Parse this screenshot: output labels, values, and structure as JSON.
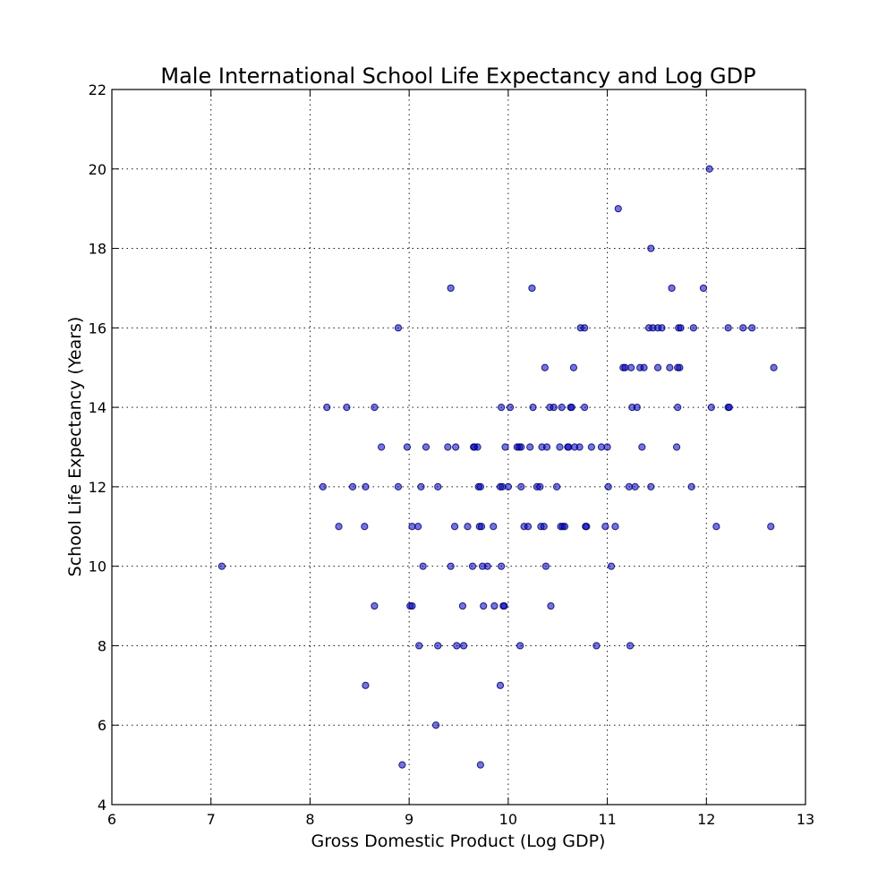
{
  "chart_data": {
    "type": "scatter",
    "title": "Male International School Life Expectancy and Log GDP",
    "xlabel": "Gross Domestic Product (Log GDP)",
    "ylabel": "School Life Expectancy (Years)",
    "xlim": [
      6,
      13
    ],
    "ylim": [
      4,
      22
    ],
    "xticks": [
      6,
      7,
      8,
      9,
      10,
      11,
      12,
      13
    ],
    "yticks": [
      4,
      6,
      8,
      10,
      12,
      14,
      16,
      18,
      20,
      22
    ],
    "grid": true,
    "marker_color": "#0000cc",
    "points": [
      [
        7.11,
        10
      ],
      [
        8.13,
        12
      ],
      [
        8.17,
        14
      ],
      [
        8.29,
        11
      ],
      [
        8.37,
        14
      ],
      [
        8.43,
        12
      ],
      [
        8.55,
        11
      ],
      [
        8.56,
        12
      ],
      [
        8.56,
        7
      ],
      [
        8.65,
        14
      ],
      [
        8.65,
        9
      ],
      [
        8.72,
        13
      ],
      [
        8.89,
        12
      ],
      [
        8.89,
        16
      ],
      [
        8.93,
        5
      ],
      [
        8.98,
        13
      ],
      [
        9.01,
        9
      ],
      [
        9.03,
        9
      ],
      [
        9.03,
        11
      ],
      [
        9.09,
        11
      ],
      [
        9.1,
        8
      ],
      [
        9.12,
        12
      ],
      [
        9.14,
        10
      ],
      [
        9.17,
        13
      ],
      [
        9.27,
        6
      ],
      [
        9.29,
        12
      ],
      [
        9.29,
        8
      ],
      [
        9.39,
        13
      ],
      [
        9.42,
        17
      ],
      [
        9.42,
        10
      ],
      [
        9.46,
        11
      ],
      [
        9.47,
        13
      ],
      [
        9.48,
        8
      ],
      [
        9.54,
        9
      ],
      [
        9.55,
        8
      ],
      [
        9.59,
        11
      ],
      [
        9.64,
        10
      ],
      [
        9.65,
        13
      ],
      [
        9.66,
        13
      ],
      [
        9.69,
        13
      ],
      [
        9.7,
        12
      ],
      [
        9.71,
        11
      ],
      [
        9.72,
        12
      ],
      [
        9.72,
        5
      ],
      [
        9.73,
        11
      ],
      [
        9.74,
        10
      ],
      [
        9.75,
        9
      ],
      [
        9.79,
        10
      ],
      [
        9.85,
        11
      ],
      [
        9.86,
        9
      ],
      [
        9.92,
        7
      ],
      [
        9.92,
        12
      ],
      [
        9.93,
        14
      ],
      [
        9.93,
        10
      ],
      [
        9.94,
        12
      ],
      [
        9.95,
        9
      ],
      [
        9.96,
        9
      ],
      [
        9.97,
        13
      ],
      [
        10.0,
        12
      ],
      [
        10.02,
        14
      ],
      [
        10.09,
        13
      ],
      [
        10.11,
        13
      ],
      [
        10.12,
        8
      ],
      [
        10.13,
        12
      ],
      [
        10.13,
        13
      ],
      [
        10.16,
        11
      ],
      [
        10.2,
        11
      ],
      [
        10.22,
        13
      ],
      [
        10.24,
        17
      ],
      [
        10.25,
        14
      ],
      [
        10.29,
        12
      ],
      [
        10.32,
        12
      ],
      [
        10.33,
        11
      ],
      [
        10.34,
        13
      ],
      [
        10.36,
        11
      ],
      [
        10.37,
        15
      ],
      [
        10.38,
        10
      ],
      [
        10.39,
        13
      ],
      [
        10.42,
        14
      ],
      [
        10.43,
        9
      ],
      [
        10.46,
        14
      ],
      [
        10.49,
        12
      ],
      [
        10.52,
        13
      ],
      [
        10.53,
        11
      ],
      [
        10.54,
        14
      ],
      [
        10.55,
        11
      ],
      [
        10.57,
        11
      ],
      [
        10.6,
        13
      ],
      [
        10.61,
        13
      ],
      [
        10.63,
        14
      ],
      [
        10.64,
        14
      ],
      [
        10.66,
        15
      ],
      [
        10.67,
        13
      ],
      [
        10.72,
        13
      ],
      [
        10.73,
        16
      ],
      [
        10.77,
        14
      ],
      [
        10.77,
        16
      ],
      [
        10.78,
        11
      ],
      [
        10.79,
        11
      ],
      [
        10.84,
        13
      ],
      [
        10.89,
        8
      ],
      [
        10.94,
        13
      ],
      [
        10.98,
        11
      ],
      [
        11.0,
        13
      ],
      [
        11.01,
        12
      ],
      [
        11.04,
        10
      ],
      [
        11.08,
        11
      ],
      [
        11.11,
        19
      ],
      [
        11.16,
        15
      ],
      [
        11.18,
        15
      ],
      [
        11.22,
        12
      ],
      [
        11.23,
        8
      ],
      [
        11.24,
        15
      ],
      [
        11.25,
        14
      ],
      [
        11.28,
        12
      ],
      [
        11.3,
        14
      ],
      [
        11.33,
        15
      ],
      [
        11.35,
        13
      ],
      [
        11.37,
        15
      ],
      [
        11.42,
        16
      ],
      [
        11.44,
        18
      ],
      [
        11.44,
        12
      ],
      [
        11.46,
        16
      ],
      [
        11.51,
        15
      ],
      [
        11.51,
        16
      ],
      [
        11.55,
        16
      ],
      [
        11.63,
        15
      ],
      [
        11.65,
        17
      ],
      [
        11.7,
        13
      ],
      [
        11.71,
        15
      ],
      [
        11.71,
        14
      ],
      [
        11.72,
        16
      ],
      [
        11.73,
        15
      ],
      [
        11.74,
        16
      ],
      [
        11.85,
        12
      ],
      [
        11.87,
        16
      ],
      [
        11.97,
        17
      ],
      [
        12.03,
        20
      ],
      [
        12.05,
        14
      ],
      [
        12.1,
        11
      ],
      [
        12.22,
        16
      ],
      [
        12.22,
        14
      ],
      [
        12.23,
        14
      ],
      [
        12.37,
        16
      ],
      [
        12.46,
        16
      ],
      [
        12.65,
        11
      ],
      [
        12.68,
        15
      ]
    ]
  }
}
